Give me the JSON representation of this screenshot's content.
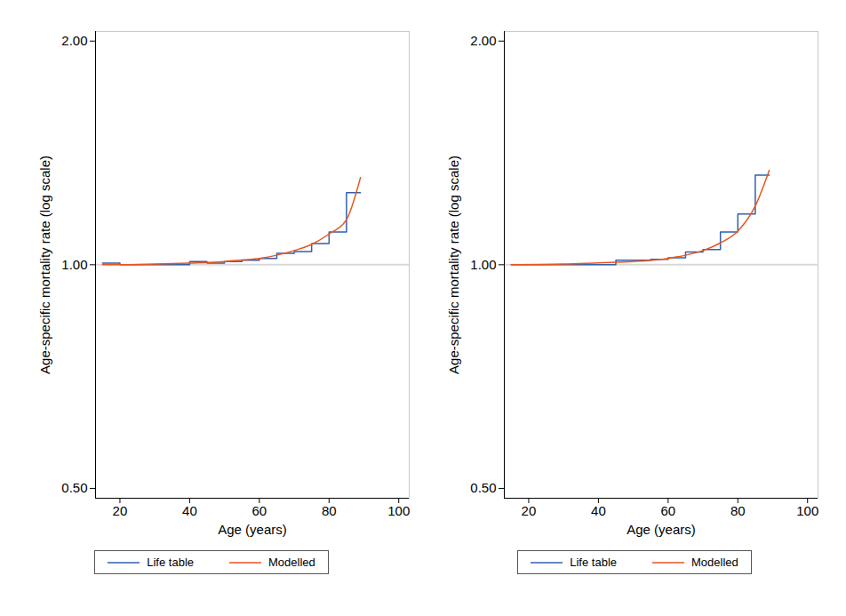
{
  "chart_data": [
    {
      "type": "line",
      "x_label": "Age (years)",
      "y_label": "Age-specific mortality rate (log scale)",
      "log": "y",
      "xlim": [
        13,
        103
      ],
      "ylim": [
        0.485,
        2.06
      ],
      "xticks": [
        20,
        40,
        60,
        80,
        100
      ],
      "yticks": [
        {
          "value": 0.5,
          "label": "0.50"
        },
        {
          "value": 1,
          "label": "1.00"
        },
        {
          "value": 2,
          "label": "2.00"
        }
      ],
      "hline": 1,
      "legend": "bottom",
      "series": [
        {
          "name": "Life table",
          "color": "#3060b0",
          "line_style": "step",
          "x": [
            15,
            20,
            40,
            45,
            50,
            55,
            60,
            65,
            70,
            75,
            80,
            85,
            89
          ],
          "values": [
            1.005,
            1.0,
            1.01,
            1.005,
            1.01,
            1.014,
            1.02,
            1.036,
            1.042,
            1.068,
            1.107,
            1.25,
            1.25
          ]
        },
        {
          "name": "Modelled",
          "color": "#e8561e",
          "line_style": "smooth",
          "x": [
            15,
            20,
            30,
            40,
            50,
            55,
            60,
            65,
            70,
            75,
            80,
            85,
            89
          ],
          "values": [
            1.0,
            1.0,
            1.002,
            1.005,
            1.01,
            1.015,
            1.02,
            1.03,
            1.045,
            1.065,
            1.1,
            1.15,
            1.31
          ]
        }
      ]
    },
    {
      "type": "line",
      "x_label": "Age (years)",
      "y_label": "Age-specific mortality rate (log scale)",
      "log": "y",
      "xlim": [
        13,
        103
      ],
      "ylim": [
        0.485,
        2.06
      ],
      "xticks": [
        20,
        40,
        60,
        80,
        100
      ],
      "yticks": [
        {
          "value": 0.5,
          "label": "0.50"
        },
        {
          "value": 1,
          "label": "1.00"
        },
        {
          "value": 2,
          "label": "2.00"
        }
      ],
      "hline": 1,
      "legend": "bottom",
      "series": [
        {
          "name": "Life table",
          "color": "#3060b0",
          "line_style": "step",
          "x": [
            15,
            45,
            55,
            60,
            65,
            70,
            75,
            80,
            85,
            89
          ],
          "values": [
            1.0,
            1.014,
            1.017,
            1.022,
            1.04,
            1.048,
            1.107,
            1.17,
            1.32,
            1.32
          ]
        },
        {
          "name": "Modelled",
          "color": "#e8561e",
          "line_style": "smooth",
          "x": [
            15,
            30,
            40,
            50,
            60,
            65,
            70,
            75,
            80,
            85,
            89
          ],
          "values": [
            1.0,
            1.002,
            1.006,
            1.01,
            1.02,
            1.03,
            1.045,
            1.07,
            1.11,
            1.2,
            1.34
          ]
        }
      ]
    }
  ]
}
